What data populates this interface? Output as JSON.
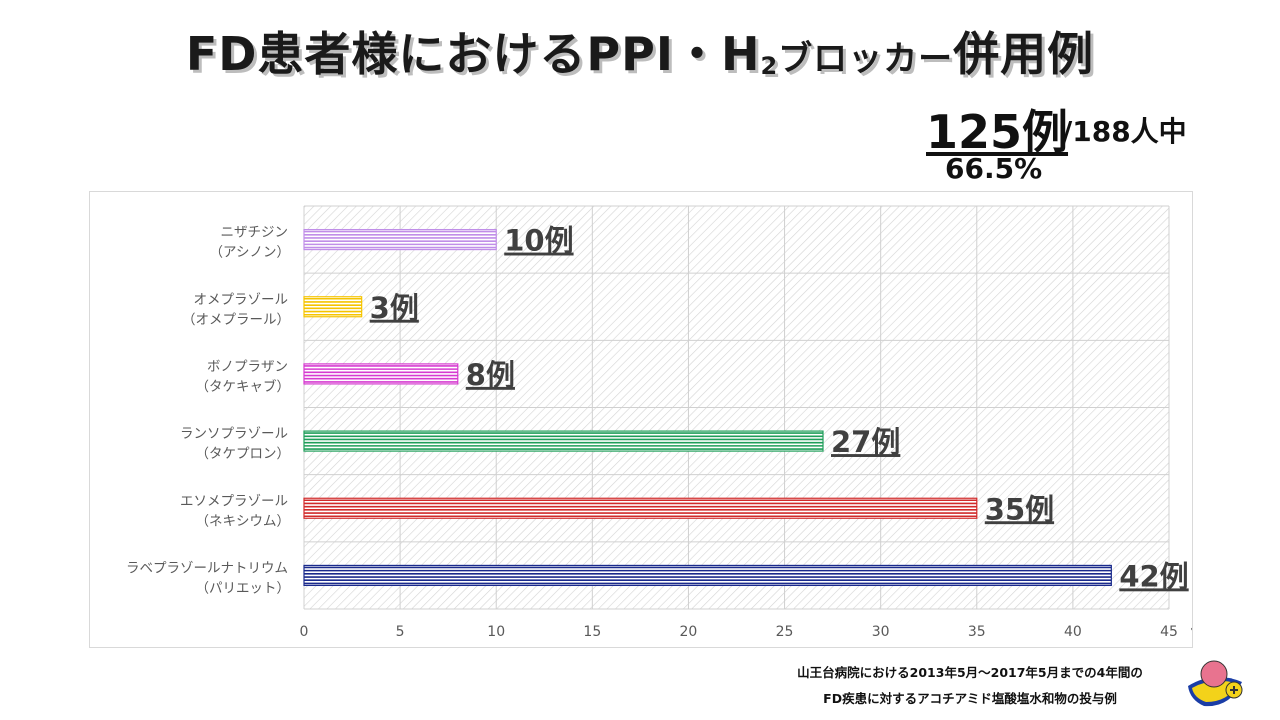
{
  "title": {
    "main": "FD患者様におけるPPI・H",
    "sub": "2",
    "small": "ブロッカー",
    "end": "併用例"
  },
  "stats": {
    "count": "125例",
    "total": "/188人中",
    "percent": "66.5%"
  },
  "chart_data": {
    "type": "bar",
    "orientation": "horizontal",
    "categories": [
      {
        "line1": "ニザチジン",
        "line2": "（アシノン）"
      },
      {
        "line1": "オメプラゾール",
        "line2": "（オメプラール）"
      },
      {
        "line1": "ボノプラザン",
        "line2": "（タケキャブ）"
      },
      {
        "line1": "ランソプラゾール",
        "line2": "（タケプロン）"
      },
      {
        "line1": "エソメプラゾール",
        "line2": "（ネキシウム）"
      },
      {
        "line1": "ラベプラゾールナトリウム",
        "line2": "（パリエット）"
      }
    ],
    "values": [
      10,
      3,
      8,
      27,
      35,
      42
    ],
    "data_labels": [
      "10例",
      "3例",
      "8例",
      "27例",
      "35例",
      "42例"
    ],
    "colors": [
      "#c08ee8",
      "#f5c400",
      "#d63bd0",
      "#1f9e5a",
      "#d12a2a",
      "#1a2a8c"
    ],
    "xlim": [
      0,
      45
    ],
    "xticks": [
      0,
      5,
      10,
      15,
      20,
      25,
      30,
      35,
      40,
      45
    ],
    "xlabel": "例）",
    "grid": true,
    "plot_background": "hatched"
  },
  "note": {
    "line1": "山王台病院における2013年5月～2017年5月までの4年間の",
    "line2": "FD疾患に対するアコチアミド塩酸塩水和物の投与例"
  }
}
